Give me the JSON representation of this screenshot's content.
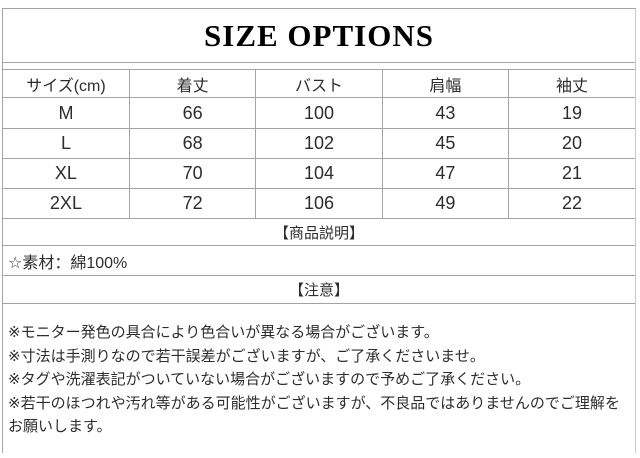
{
  "title": "SIZE OPTIONS",
  "size_table": {
    "columns": [
      "サイズ(cm)",
      "着丈",
      "バスト",
      "肩幅",
      "袖丈"
    ],
    "rows": [
      [
        "M",
        "66",
        "100",
        "43",
        "19"
      ],
      [
        "L",
        "68",
        "102",
        "45",
        "20"
      ],
      [
        "XL",
        "70",
        "104",
        "47",
        "21"
      ],
      [
        "2XL",
        "72",
        "106",
        "49",
        "22"
      ]
    ]
  },
  "sections": {
    "description_header": "【商品説明】",
    "material": "☆素材：綿100%",
    "caution_header": "【注意】"
  },
  "notes": [
    "※モニター発色の具合により色合いが異なる場合がございます。",
    "※寸法は手測りなので若干誤差がございますが、ご了承くださいませ。",
    "※タグや洗濯表記がついていない場合がございますので予めご了承ください。",
    "※若干のほつれや汚れ等がある可能性がございますが、不良品ではありませんのでご理解をお願いします。"
  ],
  "colors": {
    "border": "#a3a3a3",
    "text": "#2d2d2d",
    "title": "#000000",
    "background": "#ffffff"
  }
}
